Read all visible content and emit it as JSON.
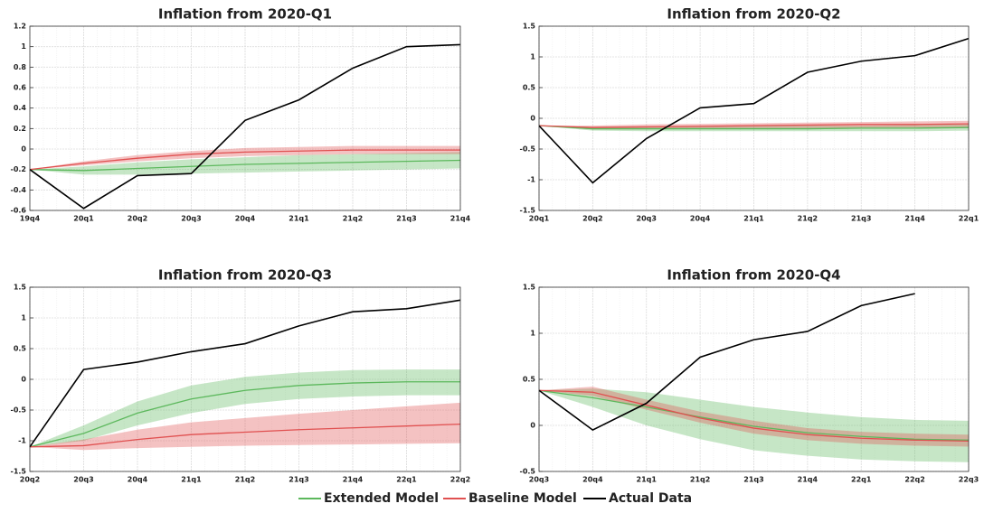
{
  "chart_data": [
    {
      "type": "line",
      "title": "Inflation from 2020-Q1",
      "grid": true,
      "categories": [
        "19q4",
        "20q1",
        "20q2",
        "20q3",
        "20q4",
        "21q1",
        "21q2",
        "21q3",
        "21q4"
      ],
      "ylim": [
        -0.6,
        1.2
      ],
      "yticks": [
        -0.6,
        -0.4,
        -0.2,
        0,
        0.2,
        0.4,
        0.6,
        0.8,
        1,
        1.2
      ],
      "series": [
        {
          "name": "Extended Model",
          "color": "#5cb85c",
          "values": [
            -0.2,
            -0.21,
            -0.19,
            -0.17,
            -0.15,
            -0.14,
            -0.13,
            -0.12,
            -0.11
          ],
          "lower": [
            -0.2,
            -0.25,
            -0.25,
            -0.24,
            -0.23,
            -0.22,
            -0.21,
            -0.2,
            -0.19
          ],
          "upper": [
            -0.2,
            -0.17,
            -0.13,
            -0.1,
            -0.08,
            -0.06,
            -0.05,
            -0.04,
            -0.03
          ]
        },
        {
          "name": "Baseline Model",
          "color": "#e05050",
          "values": [
            -0.2,
            -0.14,
            -0.09,
            -0.05,
            -0.03,
            -0.02,
            -0.01,
            -0.01,
            -0.01
          ],
          "lower": [
            -0.2,
            -0.16,
            -0.12,
            -0.09,
            -0.07,
            -0.06,
            -0.05,
            -0.05,
            -0.05
          ],
          "upper": [
            -0.2,
            -0.12,
            -0.06,
            -0.02,
            0.01,
            0.02,
            0.03,
            0.03,
            0.03
          ]
        },
        {
          "name": "Actual Data",
          "color": "#000000",
          "values": [
            -0.2,
            -0.58,
            -0.26,
            -0.24,
            0.28,
            0.48,
            0.79,
            1.0,
            1.02
          ]
        }
      ]
    },
    {
      "type": "line",
      "title": "Inflation from 2020-Q2",
      "grid": true,
      "categories": [
        "20q1",
        "20q2",
        "20q3",
        "20q4",
        "21q1",
        "21q2",
        "21q3",
        "21q4",
        "22q1"
      ],
      "ylim": [
        -1.5,
        1.5
      ],
      "yticks": [
        -1.5,
        -1,
        -0.5,
        0,
        0.5,
        1,
        1.5
      ],
      "series": [
        {
          "name": "Extended Model",
          "color": "#5cb85c",
          "values": [
            -0.12,
            -0.17,
            -0.17,
            -0.17,
            -0.17,
            -0.17,
            -0.16,
            -0.16,
            -0.15
          ],
          "lower": [
            -0.12,
            -0.2,
            -0.21,
            -0.21,
            -0.21,
            -0.21,
            -0.21,
            -0.21,
            -0.2
          ],
          "upper": [
            -0.12,
            -0.14,
            -0.13,
            -0.13,
            -0.12,
            -0.12,
            -0.12,
            -0.11,
            -0.1
          ]
        },
        {
          "name": "Baseline Model",
          "color": "#e05050",
          "values": [
            -0.12,
            -0.15,
            -0.14,
            -0.13,
            -0.12,
            -0.11,
            -0.1,
            -0.1,
            -0.09
          ],
          "lower": [
            -0.12,
            -0.18,
            -0.18,
            -0.17,
            -0.16,
            -0.16,
            -0.15,
            -0.15,
            -0.14
          ],
          "upper": [
            -0.12,
            -0.12,
            -0.1,
            -0.09,
            -0.08,
            -0.07,
            -0.06,
            -0.05,
            -0.04
          ]
        },
        {
          "name": "Actual Data",
          "color": "#000000",
          "values": [
            -0.12,
            -1.05,
            -0.33,
            0.17,
            0.24,
            0.75,
            0.93,
            1.02,
            1.3
          ]
        }
      ]
    },
    {
      "type": "line",
      "title": "Inflation from 2020-Q3",
      "grid": true,
      "categories": [
        "20q2",
        "20q3",
        "20q4",
        "21q1",
        "21q2",
        "21q3",
        "21q4",
        "22q1",
        "22q2"
      ],
      "ylim": [
        -1.5,
        1.5
      ],
      "yticks": [
        -1.5,
        -1,
        -0.5,
        0,
        0.5,
        1,
        1.5
      ],
      "series": [
        {
          "name": "Extended Model",
          "color": "#5cb85c",
          "values": [
            -1.1,
            -0.88,
            -0.55,
            -0.32,
            -0.18,
            -0.1,
            -0.06,
            -0.04,
            -0.04
          ],
          "lower": [
            -1.1,
            -1.0,
            -0.75,
            -0.55,
            -0.4,
            -0.32,
            -0.28,
            -0.26,
            -0.26
          ],
          "upper": [
            -1.1,
            -0.75,
            -0.36,
            -0.1,
            0.04,
            0.11,
            0.15,
            0.16,
            0.16
          ]
        },
        {
          "name": "Baseline Model",
          "color": "#e05050",
          "values": [
            -1.1,
            -1.08,
            -0.98,
            -0.9,
            -0.86,
            -0.82,
            -0.79,
            -0.76,
            -0.73
          ],
          "lower": [
            -1.1,
            -1.15,
            -1.12,
            -1.1,
            -1.08,
            -1.07,
            -1.06,
            -1.05,
            -1.04
          ],
          "upper": [
            -1.1,
            -0.98,
            -0.82,
            -0.7,
            -0.63,
            -0.56,
            -0.5,
            -0.44,
            -0.38
          ]
        },
        {
          "name": "Actual Data",
          "color": "#000000",
          "values": [
            -1.1,
            0.16,
            0.28,
            0.45,
            0.58,
            0.87,
            1.1,
            1.15,
            1.29
          ]
        }
      ]
    },
    {
      "type": "line",
      "title": "Inflation from 2020-Q4",
      "grid": true,
      "categories": [
        "20q3",
        "20q4",
        "21q1",
        "21q2",
        "21q3",
        "21q4",
        "22q1",
        "22q2",
        "22q3"
      ],
      "ylim": [
        -0.5,
        1.5
      ],
      "yticks": [
        -0.5,
        0,
        0.5,
        1,
        1.5
      ],
      "series": [
        {
          "name": "Extended Model",
          "color": "#5cb85c",
          "values": [
            0.38,
            0.3,
            0.2,
            0.09,
            -0.01,
            -0.08,
            -0.12,
            -0.15,
            -0.16
          ],
          "lower": [
            0.38,
            0.2,
            0.0,
            -0.15,
            -0.27,
            -0.33,
            -0.37,
            -0.39,
            -0.4
          ],
          "upper": [
            0.38,
            0.4,
            0.36,
            0.28,
            0.2,
            0.14,
            0.09,
            0.06,
            0.05
          ]
        },
        {
          "name": "Baseline Model",
          "color": "#e05050",
          "values": [
            0.38,
            0.36,
            0.22,
            0.08,
            -0.03,
            -0.1,
            -0.14,
            -0.16,
            -0.17
          ],
          "lower": [
            0.38,
            0.32,
            0.17,
            0.03,
            -0.09,
            -0.16,
            -0.2,
            -0.22,
            -0.23
          ],
          "upper": [
            0.38,
            0.42,
            0.28,
            0.15,
            0.05,
            -0.03,
            -0.07,
            -0.09,
            -0.1
          ]
        },
        {
          "name": "Actual Data",
          "color": "#000000",
          "values": [
            0.38,
            -0.05,
            0.24,
            0.74,
            0.93,
            1.02,
            1.3,
            1.43,
            null
          ]
        }
      ]
    }
  ]
}
